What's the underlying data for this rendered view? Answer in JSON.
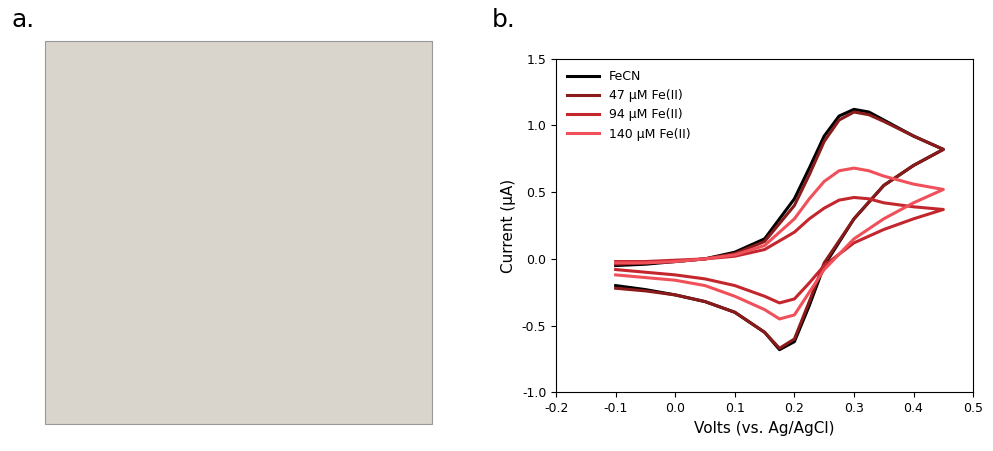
{
  "chart_data": {
    "type": "line",
    "annotations": [
      "a.",
      "b."
    ],
    "x_label": "Volts (vs. Ag/AgCl)",
    "y_label": "Current (µA)",
    "x": [
      -0.1,
      -0.05,
      0.0,
      0.05,
      0.1,
      0.15,
      0.2,
      0.225,
      0.25,
      0.275,
      0.3,
      0.325,
      0.35,
      0.4,
      0.45,
      0.45,
      0.4,
      0.35,
      0.3,
      0.25,
      0.225,
      0.2,
      0.175,
      0.15,
      0.1,
      0.05,
      0.0,
      -0.05,
      -0.1
    ],
    "series": [
      {
        "name": "FeCN",
        "color": "#000000",
        "values": [
          -0.05,
          -0.04,
          -0.02,
          0.0,
          0.05,
          0.15,
          0.45,
          0.68,
          0.92,
          1.07,
          1.12,
          1.1,
          1.04,
          0.92,
          0.82,
          0.82,
          0.7,
          0.55,
          0.3,
          -0.05,
          -0.35,
          -0.62,
          -0.68,
          -0.55,
          -0.4,
          -0.32,
          -0.27,
          -0.23,
          -0.2
        ]
      },
      {
        "name": "47 µM Fe(II)",
        "color": "#8b1a1a",
        "values": [
          -0.04,
          -0.03,
          -0.02,
          0.0,
          0.04,
          0.13,
          0.4,
          0.63,
          0.88,
          1.04,
          1.1,
          1.08,
          1.03,
          0.92,
          0.82,
          0.82,
          0.7,
          0.55,
          0.3,
          -0.03,
          -0.32,
          -0.6,
          -0.67,
          -0.55,
          -0.4,
          -0.32,
          -0.27,
          -0.24,
          -0.22
        ]
      },
      {
        "name": "94 µM Fe(II)",
        "color": "#c4262e",
        "values": [
          -0.02,
          -0.02,
          -0.01,
          0.0,
          0.02,
          0.07,
          0.2,
          0.3,
          0.38,
          0.44,
          0.46,
          0.45,
          0.42,
          0.39,
          0.37,
          0.37,
          0.3,
          0.22,
          0.12,
          -0.05,
          -0.18,
          -0.3,
          -0.33,
          -0.28,
          -0.2,
          -0.15,
          -0.12,
          -0.1,
          -0.08
        ]
      },
      {
        "name": "140 µM Fe(II)",
        "color": "#f0505a",
        "values": [
          -0.03,
          -0.03,
          -0.02,
          0.0,
          0.03,
          0.1,
          0.3,
          0.45,
          0.58,
          0.66,
          0.68,
          0.66,
          0.62,
          0.56,
          0.52,
          0.52,
          0.42,
          0.3,
          0.15,
          -0.08,
          -0.25,
          -0.42,
          -0.45,
          -0.38,
          -0.28,
          -0.2,
          -0.16,
          -0.14,
          -0.12
        ]
      }
    ],
    "xlim": [
      -0.2,
      0.5
    ],
    "xticks": [
      -0.2,
      -0.1,
      0.0,
      0.1,
      0.2,
      0.3,
      0.4,
      0.5
    ],
    "ylim": [
      -1.0,
      1.5
    ],
    "yticks": [
      -1.0,
      -0.5,
      0.0,
      0.5,
      1.0,
      1.5
    ],
    "legend": "upper left",
    "grid": false
  }
}
